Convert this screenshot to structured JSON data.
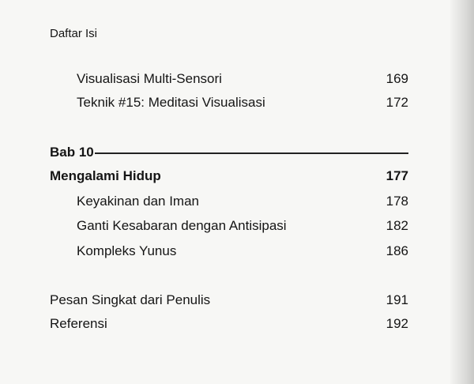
{
  "header": "Daftar Isi",
  "entries_top": [
    {
      "title": "Visualisasi Multi-Sensori",
      "page": "169"
    },
    {
      "title": "Teknik #15:  Meditasi Visualisasi",
      "page": "172"
    }
  ],
  "chapter": {
    "label": "Bab 10",
    "title": "Mengalami Hidup",
    "page": "177",
    "sections": [
      {
        "title": "Keyakinan dan Iman",
        "page": "178"
      },
      {
        "title": "Ganti Kesabaran dengan Antisipasi",
        "page": "182"
      },
      {
        "title": "Kompleks Yunus",
        "page": "186"
      }
    ]
  },
  "entries_end": [
    {
      "title": "Pesan Singkat dari Penulis",
      "page": "191"
    },
    {
      "title": "Referensi",
      "page": "192"
    }
  ]
}
